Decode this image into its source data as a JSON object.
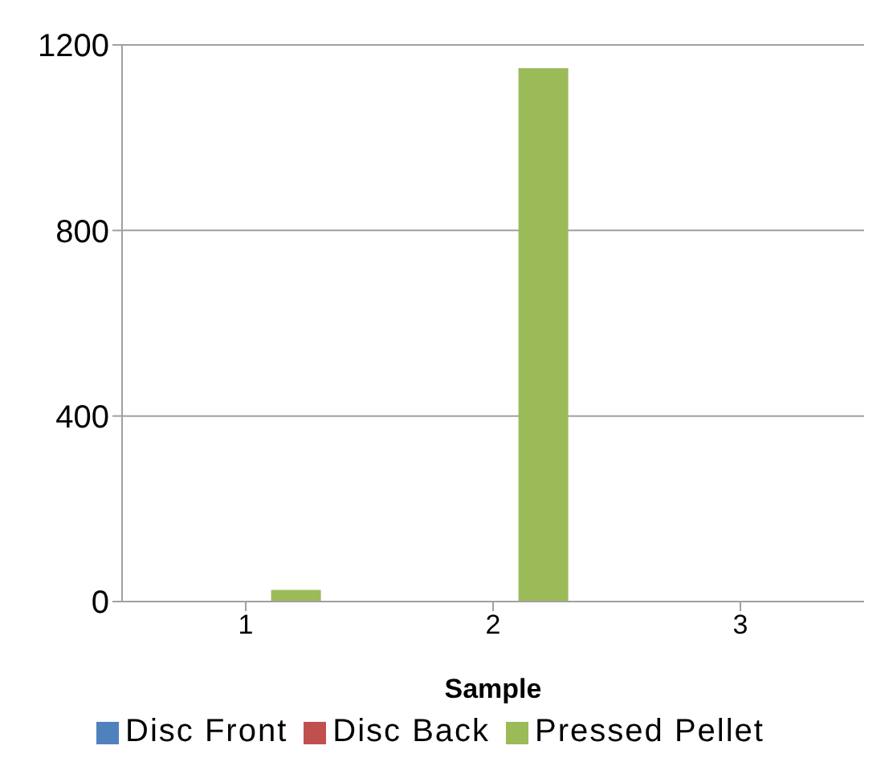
{
  "chart_data": {
    "type": "bar",
    "xlabel": "Sample",
    "categories": [
      "1",
      "2",
      "3"
    ],
    "series": [
      {
        "name": "Disc Front",
        "color": "#4f81bd",
        "values": [
          1,
          1,
          1
        ]
      },
      {
        "name": "Disc Back",
        "color": "#c0504d",
        "values": [
          1,
          1,
          1
        ]
      },
      {
        "name": "Pressed Pellet",
        "color": "#9bbb59",
        "values": [
          25,
          1150,
          1
        ]
      }
    ],
    "ylim": [
      0,
      1200
    ],
    "yticks": [
      0,
      400,
      800,
      1200
    ],
    "grid": "y",
    "legend": "bottom"
  }
}
